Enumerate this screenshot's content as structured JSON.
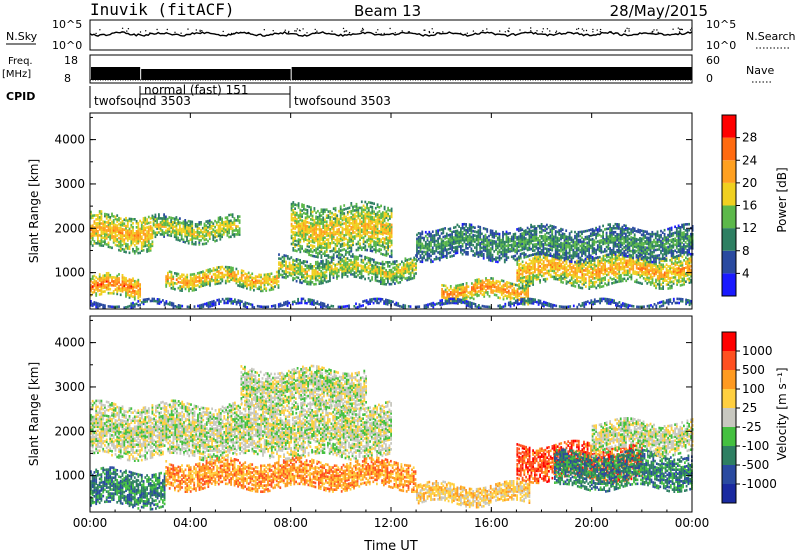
{
  "header": {
    "station": "Inuvik (fitACF)",
    "beam": "Beam 13",
    "date": "28/May/2015"
  },
  "top_panels": {
    "nsky_label": "N.Sky",
    "nsearch_label": "N.Search",
    "nsky_ticks": [
      "10^5",
      "10^0"
    ],
    "nsearch_ticks": [
      "10^5",
      "10^0"
    ],
    "freq_label_line1": "Freq.",
    "freq_label_line2": "[MHz]",
    "freq_ticks": [
      "18",
      "8"
    ],
    "nave_label": "Nave",
    "nave_ticks": [
      "60",
      "0"
    ],
    "cpid_label": "CPID",
    "cpid_segments": [
      {
        "label": "twofsound 3503",
        "start_hour": 0,
        "end_hour": 2
      },
      {
        "label": "normal (fast) 151",
        "start_hour": 2,
        "end_hour": 8
      },
      {
        "label": "twofsound 3503",
        "start_hour": 8,
        "end_hour": 24
      }
    ]
  },
  "colors": {
    "power": [
      "#1a1aff",
      "#2a4aa0",
      "#2e7f62",
      "#5cb84a",
      "#f0d020",
      "#ffa020",
      "#ff6a10",
      "#ff0000"
    ],
    "velocity": [
      "#ff0000",
      "#ff5020",
      "#ff9a20",
      "#ffcf40",
      "#c8c8c0",
      "#44c040",
      "#2e7f62",
      "#2a4aa0",
      "#1a2aa0"
    ]
  },
  "chart_data": [
    {
      "type": "heatmap",
      "name": "power",
      "xlabel": "",
      "ylabel": "Slant Range [km]",
      "xlim": [
        0,
        24
      ],
      "ylim": [
        180,
        4600
      ],
      "yticks": [
        "1000",
        "2000",
        "3000",
        "4000"
      ],
      "xticks": [
        "00:00",
        "04:00",
        "08:00",
        "12:00",
        "16:00",
        "20:00",
        "00:00"
      ],
      "colorbar_label": "Power [dB]",
      "colorbar_ticks": [
        "4",
        "8",
        "12",
        "16",
        "20",
        "24",
        "28"
      ],
      "colorbar_range": [
        0,
        32
      ],
      "echo_bands": [
        {
          "t0": 0.0,
          "t1": 2.0,
          "r0": 420,
          "r1": 900,
          "level": 26
        },
        {
          "t0": 0.0,
          "t1": 2.5,
          "r0": 1500,
          "r1": 2300,
          "level": 22
        },
        {
          "t0": 2.5,
          "t1": 6.0,
          "r0": 1700,
          "r1": 2200,
          "level": 18
        },
        {
          "t0": 3.0,
          "t1": 7.5,
          "r0": 650,
          "r1": 1050,
          "level": 22
        },
        {
          "t0": 8.0,
          "t1": 12.0,
          "r0": 1400,
          "r1": 2500,
          "level": 20
        },
        {
          "t0": 7.5,
          "t1": 13.0,
          "r0": 800,
          "r1": 1300,
          "level": 18
        },
        {
          "t0": 14.0,
          "t1": 17.5,
          "r0": 350,
          "r1": 800,
          "level": 24
        },
        {
          "t0": 17.0,
          "t1": 24.0,
          "r0": 700,
          "r1": 1400,
          "level": 22
        },
        {
          "t0": 13.0,
          "t1": 24.0,
          "r0": 1300,
          "r1": 2000,
          "level": 12
        },
        {
          "t0": 0.0,
          "t1": 24.0,
          "r0": 200,
          "r1": 320,
          "level": 8
        }
      ]
    },
    {
      "type": "heatmap",
      "name": "velocity",
      "xlabel": "Time UT",
      "ylabel": "Slant Range [km]",
      "xlim": [
        0,
        24
      ],
      "ylim": [
        180,
        4600
      ],
      "yticks": [
        "1000",
        "2000",
        "3000",
        "4000"
      ],
      "xticks": [
        "00:00",
        "04:00",
        "08:00",
        "12:00",
        "16:00",
        "20:00",
        "00:00"
      ],
      "colorbar_label": "Velocity [m s⁻¹]",
      "colorbar_ticks": [
        "1000",
        "500",
        "100",
        "25",
        "-25",
        "-100",
        "-500",
        "-1000"
      ],
      "echo_bands": [
        {
          "t0": 0.0,
          "t1": 3.0,
          "r0": 300,
          "r1": 1100,
          "level": 2
        },
        {
          "t0": 0.0,
          "t1": 12.0,
          "r0": 1400,
          "r1": 2600,
          "level": 4
        },
        {
          "t0": 6.0,
          "t1": 11.0,
          "r0": 2500,
          "r1": 3400,
          "level": 4
        },
        {
          "t0": 3.0,
          "t1": 13.0,
          "r0": 700,
          "r1": 1300,
          "level": 6
        },
        {
          "t0": 13.0,
          "t1": 17.5,
          "r0": 350,
          "r1": 800,
          "level": 5
        },
        {
          "t0": 17.0,
          "t1": 22.0,
          "r0": 900,
          "r1": 1700,
          "level": 7
        },
        {
          "t0": 18.5,
          "t1": 24.0,
          "r0": 700,
          "r1": 1500,
          "level": 2
        },
        {
          "t0": 20.0,
          "t1": 24.0,
          "r0": 1500,
          "r1": 2200,
          "level": 4
        }
      ]
    }
  ]
}
